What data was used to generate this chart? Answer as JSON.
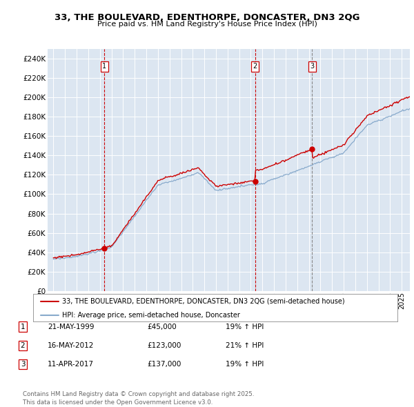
{
  "title": "33, THE BOULEVARD, EDENTHORPE, DONCASTER, DN3 2QG",
  "subtitle": "Price paid vs. HM Land Registry's House Price Index (HPI)",
  "legend_line1": "33, THE BOULEVARD, EDENTHORPE, DONCASTER, DN3 2QG (semi-detached house)",
  "legend_line2": "HPI: Average price, semi-detached house, Doncaster",
  "footer": "Contains HM Land Registry data © Crown copyright and database right 2025.\nThis data is licensed under the Open Government Licence v3.0.",
  "transactions": [
    {
      "num": 1,
      "date": "21-MAY-1999",
      "price": 45000,
      "hpi_pct": "19% ↑ HPI",
      "year": 1999.38
    },
    {
      "num": 2,
      "date": "16-MAY-2012",
      "price": 123000,
      "hpi_pct": "21% ↑ HPI",
      "year": 2012.37
    },
    {
      "num": 3,
      "date": "11-APR-2017",
      "price": 137000,
      "hpi_pct": "19% ↑ HPI",
      "year": 2017.27
    }
  ],
  "price_color": "#cc0000",
  "hpi_color": "#88aacc",
  "background_color": "#dce6f1",
  "plot_bg_color": "#dce6f1",
  "grid_color": "#ffffff",
  "vline_color_red": "#cc0000",
  "vline_color_gray": "#888888",
  "ylim": [
    0,
    250000
  ],
  "yticks": [
    0,
    20000,
    40000,
    60000,
    80000,
    100000,
    120000,
    140000,
    160000,
    180000,
    200000,
    220000,
    240000
  ],
  "xlim_start": 1994.5,
  "xlim_end": 2025.7
}
